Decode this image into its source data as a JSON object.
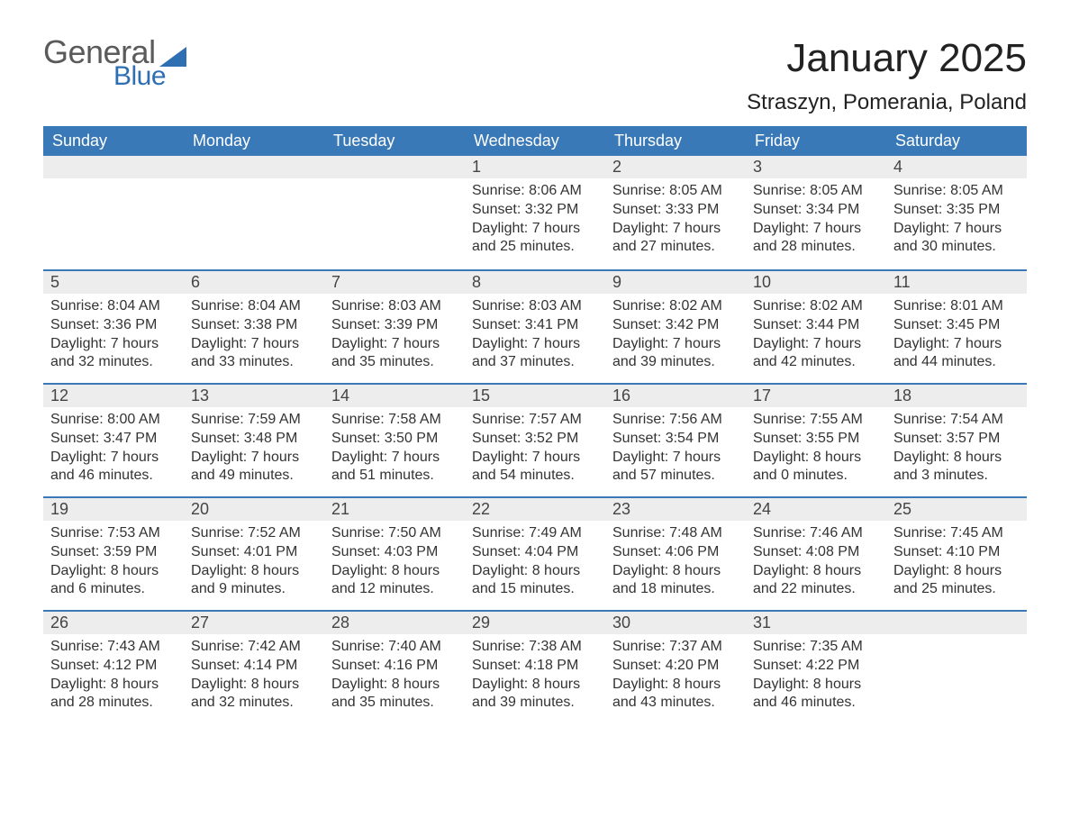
{
  "logo": {
    "text_general": "General",
    "text_blue": "Blue"
  },
  "title": "January 2025",
  "location": "Straszyn, Pomerania, Poland",
  "colors": {
    "header_bg": "#3a79b7",
    "header_text": "#ffffff",
    "daynum_bg": "#ededed",
    "cell_border": "#3a79b7",
    "logo_accent": "#2e6fb4",
    "body_text": "#333333",
    "page_bg": "#ffffff"
  },
  "typography": {
    "title_fontsize": 44,
    "location_fontsize": 24,
    "header_fontsize": 18,
    "daynum_fontsize": 18,
    "body_fontsize": 16,
    "font_family": "Arial"
  },
  "day_headers": [
    "Sunday",
    "Monday",
    "Tuesday",
    "Wednesday",
    "Thursday",
    "Friday",
    "Saturday"
  ],
  "weeks": [
    [
      null,
      null,
      null,
      {
        "num": "1",
        "sunrise": "Sunrise: 8:06 AM",
        "sunset": "Sunset: 3:32 PM",
        "daylight": "Daylight: 7 hours and 25 minutes."
      },
      {
        "num": "2",
        "sunrise": "Sunrise: 8:05 AM",
        "sunset": "Sunset: 3:33 PM",
        "daylight": "Daylight: 7 hours and 27 minutes."
      },
      {
        "num": "3",
        "sunrise": "Sunrise: 8:05 AM",
        "sunset": "Sunset: 3:34 PM",
        "daylight": "Daylight: 7 hours and 28 minutes."
      },
      {
        "num": "4",
        "sunrise": "Sunrise: 8:05 AM",
        "sunset": "Sunset: 3:35 PM",
        "daylight": "Daylight: 7 hours and 30 minutes."
      }
    ],
    [
      {
        "num": "5",
        "sunrise": "Sunrise: 8:04 AM",
        "sunset": "Sunset: 3:36 PM",
        "daylight": "Daylight: 7 hours and 32 minutes."
      },
      {
        "num": "6",
        "sunrise": "Sunrise: 8:04 AM",
        "sunset": "Sunset: 3:38 PM",
        "daylight": "Daylight: 7 hours and 33 minutes."
      },
      {
        "num": "7",
        "sunrise": "Sunrise: 8:03 AM",
        "sunset": "Sunset: 3:39 PM",
        "daylight": "Daylight: 7 hours and 35 minutes."
      },
      {
        "num": "8",
        "sunrise": "Sunrise: 8:03 AM",
        "sunset": "Sunset: 3:41 PM",
        "daylight": "Daylight: 7 hours and 37 minutes."
      },
      {
        "num": "9",
        "sunrise": "Sunrise: 8:02 AM",
        "sunset": "Sunset: 3:42 PM",
        "daylight": "Daylight: 7 hours and 39 minutes."
      },
      {
        "num": "10",
        "sunrise": "Sunrise: 8:02 AM",
        "sunset": "Sunset: 3:44 PM",
        "daylight": "Daylight: 7 hours and 42 minutes."
      },
      {
        "num": "11",
        "sunrise": "Sunrise: 8:01 AM",
        "sunset": "Sunset: 3:45 PM",
        "daylight": "Daylight: 7 hours and 44 minutes."
      }
    ],
    [
      {
        "num": "12",
        "sunrise": "Sunrise: 8:00 AM",
        "sunset": "Sunset: 3:47 PM",
        "daylight": "Daylight: 7 hours and 46 minutes."
      },
      {
        "num": "13",
        "sunrise": "Sunrise: 7:59 AM",
        "sunset": "Sunset: 3:48 PM",
        "daylight": "Daylight: 7 hours and 49 minutes."
      },
      {
        "num": "14",
        "sunrise": "Sunrise: 7:58 AM",
        "sunset": "Sunset: 3:50 PM",
        "daylight": "Daylight: 7 hours and 51 minutes."
      },
      {
        "num": "15",
        "sunrise": "Sunrise: 7:57 AM",
        "sunset": "Sunset: 3:52 PM",
        "daylight": "Daylight: 7 hours and 54 minutes."
      },
      {
        "num": "16",
        "sunrise": "Sunrise: 7:56 AM",
        "sunset": "Sunset: 3:54 PM",
        "daylight": "Daylight: 7 hours and 57 minutes."
      },
      {
        "num": "17",
        "sunrise": "Sunrise: 7:55 AM",
        "sunset": "Sunset: 3:55 PM",
        "daylight": "Daylight: 8 hours and 0 minutes."
      },
      {
        "num": "18",
        "sunrise": "Sunrise: 7:54 AM",
        "sunset": "Sunset: 3:57 PM",
        "daylight": "Daylight: 8 hours and 3 minutes."
      }
    ],
    [
      {
        "num": "19",
        "sunrise": "Sunrise: 7:53 AM",
        "sunset": "Sunset: 3:59 PM",
        "daylight": "Daylight: 8 hours and 6 minutes."
      },
      {
        "num": "20",
        "sunrise": "Sunrise: 7:52 AM",
        "sunset": "Sunset: 4:01 PM",
        "daylight": "Daylight: 8 hours and 9 minutes."
      },
      {
        "num": "21",
        "sunrise": "Sunrise: 7:50 AM",
        "sunset": "Sunset: 4:03 PM",
        "daylight": "Daylight: 8 hours and 12 minutes."
      },
      {
        "num": "22",
        "sunrise": "Sunrise: 7:49 AM",
        "sunset": "Sunset: 4:04 PM",
        "daylight": "Daylight: 8 hours and 15 minutes."
      },
      {
        "num": "23",
        "sunrise": "Sunrise: 7:48 AM",
        "sunset": "Sunset: 4:06 PM",
        "daylight": "Daylight: 8 hours and 18 minutes."
      },
      {
        "num": "24",
        "sunrise": "Sunrise: 7:46 AM",
        "sunset": "Sunset: 4:08 PM",
        "daylight": "Daylight: 8 hours and 22 minutes."
      },
      {
        "num": "25",
        "sunrise": "Sunrise: 7:45 AM",
        "sunset": "Sunset: 4:10 PM",
        "daylight": "Daylight: 8 hours and 25 minutes."
      }
    ],
    [
      {
        "num": "26",
        "sunrise": "Sunrise: 7:43 AM",
        "sunset": "Sunset: 4:12 PM",
        "daylight": "Daylight: 8 hours and 28 minutes."
      },
      {
        "num": "27",
        "sunrise": "Sunrise: 7:42 AM",
        "sunset": "Sunset: 4:14 PM",
        "daylight": "Daylight: 8 hours and 32 minutes."
      },
      {
        "num": "28",
        "sunrise": "Sunrise: 7:40 AM",
        "sunset": "Sunset: 4:16 PM",
        "daylight": "Daylight: 8 hours and 35 minutes."
      },
      {
        "num": "29",
        "sunrise": "Sunrise: 7:38 AM",
        "sunset": "Sunset: 4:18 PM",
        "daylight": "Daylight: 8 hours and 39 minutes."
      },
      {
        "num": "30",
        "sunrise": "Sunrise: 7:37 AM",
        "sunset": "Sunset: 4:20 PM",
        "daylight": "Daylight: 8 hours and 43 minutes."
      },
      {
        "num": "31",
        "sunrise": "Sunrise: 7:35 AM",
        "sunset": "Sunset: 4:22 PM",
        "daylight": "Daylight: 8 hours and 46 minutes."
      },
      null
    ]
  ]
}
